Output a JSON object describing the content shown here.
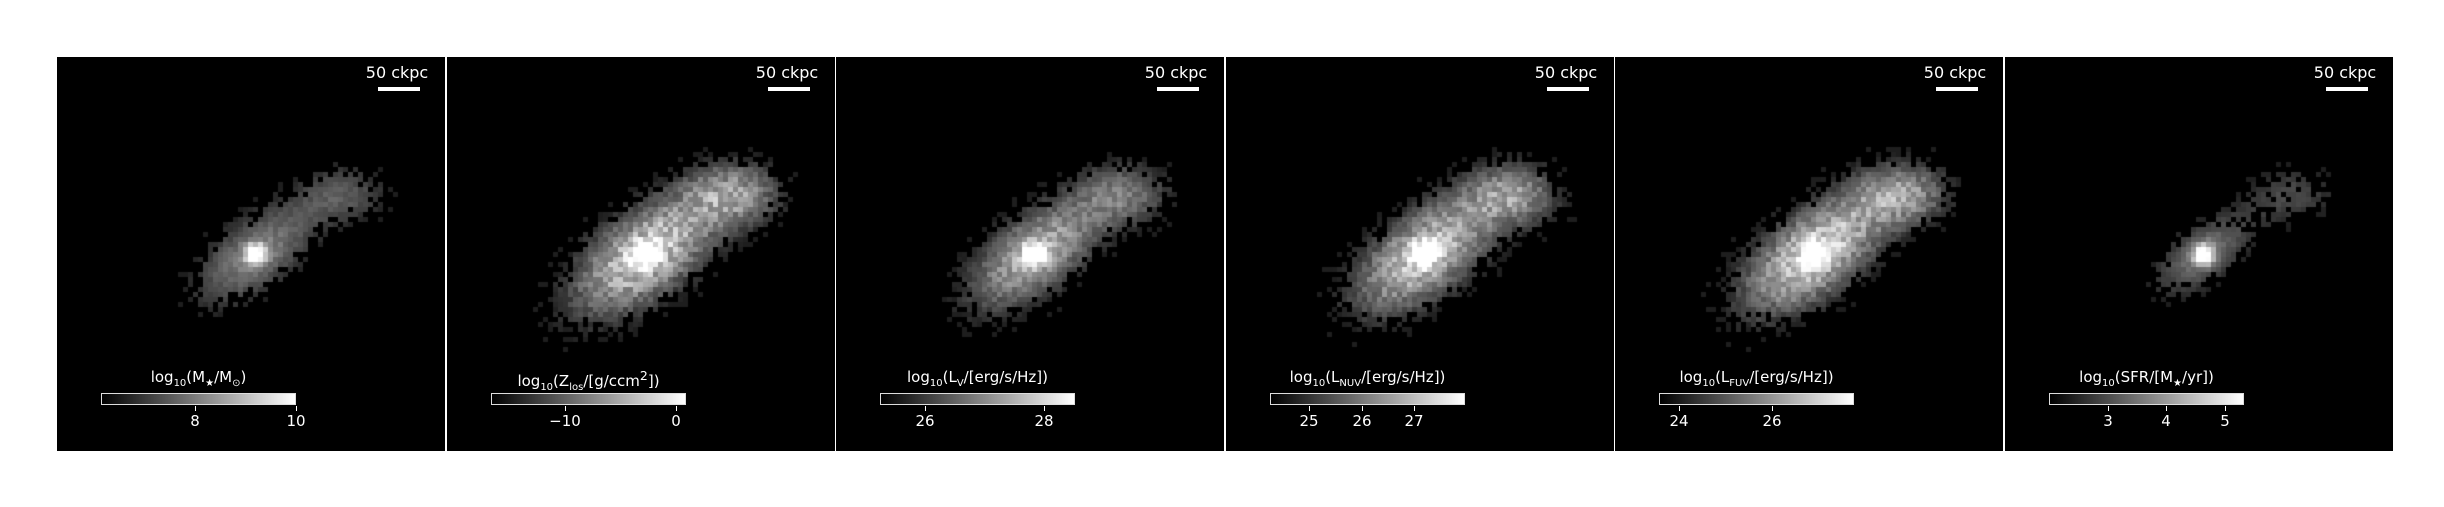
{
  "panels": [
    {
      "scalebar": "50 ckpc",
      "colorbar": {
        "parts": [
          "log",
          "10",
          "(M",
          "★",
          "/M",
          "⊙",
          ")"
        ],
        "ticks": [
          "8",
          "10"
        ],
        "tick_fracs": [
          0.48,
          1.0
        ]
      },
      "blob": {
        "core": 1.0,
        "halo": 0.55,
        "scatter": 0.35,
        "spread": 1.0
      }
    },
    {
      "scalebar": "50 ckpc",
      "colorbar": {
        "parts": [
          "log",
          "10",
          "(Z",
          "los",
          "/[g/ccm",
          "2",
          "])"
        ],
        "ticks": [
          "−10",
          "0"
        ],
        "tick_fracs": [
          0.38,
          0.95
        ]
      },
      "blob": {
        "core": 0.95,
        "halo": 0.8,
        "scatter": 0.75,
        "spread": 1.15
      }
    },
    {
      "scalebar": "50 ckpc",
      "colorbar": {
        "parts": [
          "log",
          "10",
          "(L",
          "V",
          "/[erg/s/Hz])",
          "",
          ""
        ],
        "ticks": [
          "26",
          "28"
        ],
        "tick_fracs": [
          0.23,
          0.84
        ]
      },
      "blob": {
        "core": 1.0,
        "halo": 0.7,
        "scatter": 0.6,
        "spread": 1.05
      }
    },
    {
      "scalebar": "50 ckpc",
      "colorbar": {
        "parts": [
          "log",
          "10",
          "(L",
          "NUV",
          "/[erg/s/Hz])",
          "",
          ""
        ],
        "ticks": [
          "25",
          "26",
          "27"
        ],
        "tick_fracs": [
          0.2,
          0.47,
          0.74
        ]
      },
      "blob": {
        "core": 0.95,
        "halo": 0.8,
        "scatter": 0.7,
        "spread": 1.1
      }
    },
    {
      "scalebar": "50 ckpc",
      "colorbar": {
        "parts": [
          "log",
          "10",
          "(L",
          "FUV",
          "/[erg/s/Hz])",
          "",
          ""
        ],
        "ticks": [
          "24",
          "26"
        ],
        "tick_fracs": [
          0.1,
          0.58
        ]
      },
      "blob": {
        "core": 0.9,
        "halo": 0.85,
        "scatter": 0.7,
        "spread": 1.1
      }
    },
    {
      "scalebar": "50 ckpc",
      "colorbar": {
        "parts": [
          "log",
          "10",
          "(SFR/[M",
          "★",
          "/yr])",
          "",
          ""
        ],
        "ticks": [
          "3",
          "4",
          "5"
        ],
        "tick_fracs": [
          0.3,
          0.6,
          0.9
        ]
      },
      "blob": {
        "core": 1.0,
        "halo": 0.5,
        "scatter": 0.3,
        "spread": 0.8
      }
    }
  ]
}
